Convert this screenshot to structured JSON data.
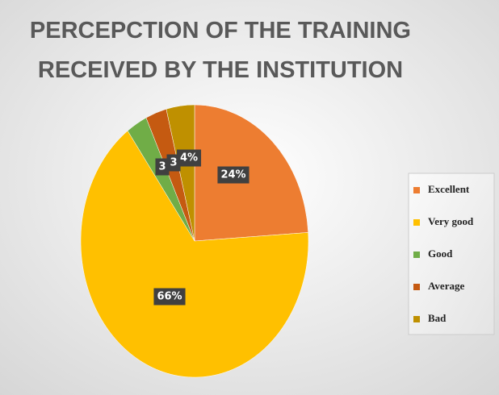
{
  "chart_data": {
    "type": "pie",
    "title": "PERCEPCTION OF THE TRAINING RECEIVED BY THE INSTITUTION",
    "categories": [
      "Excellent",
      "Very good",
      "Good",
      "Average",
      "Bad"
    ],
    "values": [
      24,
      66,
      3,
      3,
      4
    ],
    "value_labels": [
      "24%",
      "66%",
      "3",
      "3",
      "4%"
    ],
    "colors": [
      "#ED7D31",
      "#FFC000",
      "#70AD47",
      "#C55A11",
      "#BF9000"
    ],
    "legend": "right"
  }
}
